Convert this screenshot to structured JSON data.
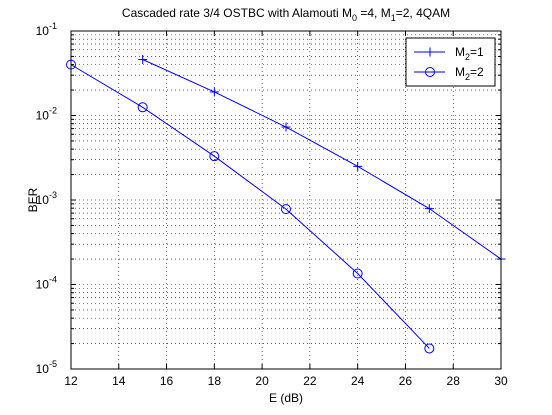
{
  "chart_data": {
    "type": "line",
    "title": {
      "prefix": "Cascaded rate 3/4 OSTBC with Alamouti M",
      "sub0": "0",
      "mid": " =4, M",
      "sub1": "1",
      "suffix": "=2, 4QAM"
    },
    "xlabel": "E (dB)",
    "ylabel": "BER",
    "xlim": [
      12,
      30
    ],
    "ylim": [
      1e-05,
      0.1
    ],
    "yscale": "log",
    "grid": true,
    "x_ticks": [
      "12",
      "14",
      "16",
      "18",
      "20",
      "22",
      "24",
      "26",
      "28",
      "30"
    ],
    "y_ticks": [
      {
        "base": "10",
        "exp": "-5"
      },
      {
        "base": "10",
        "exp": "-4"
      },
      {
        "base": "10",
        "exp": "-3"
      },
      {
        "base": "10",
        "exp": "-2"
      },
      {
        "base": "10",
        "exp": "-1"
      }
    ],
    "legend_position": "top-right",
    "series": [
      {
        "name": {
          "prefix": "M",
          "sub": "2",
          "suffix": "=1"
        },
        "marker": "plus",
        "color": "#0000ff",
        "x": [
          15,
          18,
          21,
          24,
          27,
          30
        ],
        "y": [
          0.046,
          0.019,
          0.0073,
          0.0025,
          0.00079,
          0.0002
        ]
      },
      {
        "name": {
          "prefix": "M",
          "sub": "2",
          "suffix": "=2"
        },
        "marker": "circle",
        "color": "#0000ff",
        "x": [
          12,
          15,
          18,
          21,
          24,
          27
        ],
        "y": [
          0.04,
          0.0125,
          0.0033,
          0.00078,
          0.000135,
          1.75e-05
        ]
      }
    ]
  }
}
